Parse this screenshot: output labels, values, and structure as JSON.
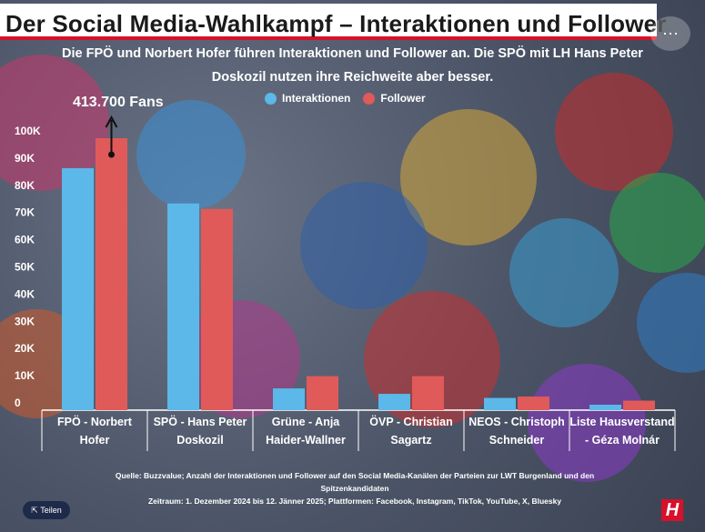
{
  "title": "Der Social Media-Wahlkampf – Interaktionen und Follower",
  "subtitle_line1": "Die FPÖ und Norbert Hofer führen Interaktionen und Follower an. Die SPÖ mit LH Hans Peter",
  "subtitle_line2": "Doskozil nutzen ihre Reichweite aber besser.",
  "callout": "413.700 Fans",
  "menu_icon": "⋯",
  "source_line1": "Quelle:  Buzzvalue; Anzahl der Interaktionen und Follower auf den Social Media-Kanälen der Parteien zur LWT Burgenland und  den",
  "source_line2": "Spitzenkandidaten",
  "period": "Zeitraum: 1. Dezember 2024 bis 12. Jänner 2025; Plattformen: Facebook, Instagram, TikTok, YouTube, X, Bluesky",
  "share_label": "Teilen",
  "logo_letter": "H",
  "colors": {
    "interaktionen": "#5bb8e8",
    "follower": "#e05a5a",
    "accent": "#d8102a"
  },
  "chart_data": {
    "type": "bar",
    "categories": [
      [
        "FPÖ - Norbert",
        "Hofer"
      ],
      [
        "SPÖ - Hans Peter",
        "Doskozil"
      ],
      [
        "Grüne - Anja",
        "Haider-Wallner"
      ],
      [
        "ÖVP - Christian",
        "Sagartz"
      ],
      [
        "NEOS - Christoph",
        "Schneider"
      ],
      [
        "Liste Hausverstand",
        "- Géza Molnár"
      ]
    ],
    "series": [
      {
        "name": "Interaktionen",
        "values": [
          89000,
          76000,
          8000,
          6000,
          4500,
          2000
        ]
      },
      {
        "name": "Follower",
        "values": [
          100000,
          74000,
          12500,
          12500,
          5000,
          3500
        ]
      }
    ],
    "ylim": [
      0,
      100000
    ],
    "yticks": [
      "0",
      "10K",
      "20K",
      "30K",
      "40K",
      "50K",
      "60K",
      "70K",
      "80K",
      "90K",
      "100K"
    ],
    "legend": "top-center",
    "grid": false
  }
}
